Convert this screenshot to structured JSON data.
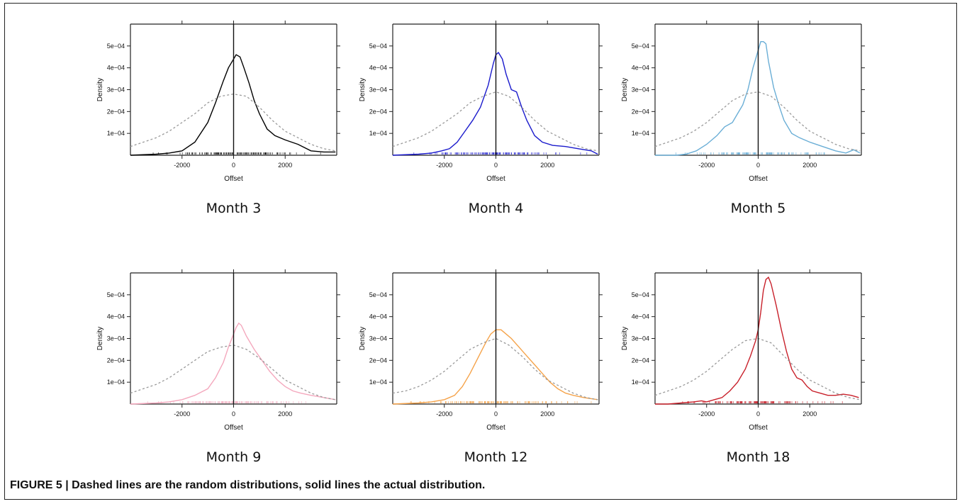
{
  "caption": "FIGURE 5 | Dashed lines are the random distributions, solid lines the actual distribution.",
  "chart_data": [
    {
      "type": "line",
      "title": "Month 3",
      "color": "#000000",
      "xlabel": "Offset",
      "ylabel": "Density",
      "xlim": [
        -4000,
        4000
      ],
      "ylim": [
        0,
        0.0006
      ],
      "xticks": [
        -2000,
        0,
        2000
      ],
      "yticks": [
        0.0001,
        0.0002,
        0.0003,
        0.0004,
        0.0005
      ],
      "xtick_labels": [
        "-2000",
        "0",
        "2000"
      ],
      "ytick_labels": [
        "1e−04",
        "2e−04",
        "3e−04",
        "4e−04",
        "5e−04"
      ],
      "series": [
        {
          "style": "solid",
          "x": [
            -4000,
            -3000,
            -2500,
            -2000,
            -1500,
            -1000,
            -700,
            -400,
            -200,
            0,
            100,
            250,
            400,
            600,
            800,
            1000,
            1300,
            1600,
            2000,
            2500,
            3000,
            3500,
            3950
          ],
          "y": [
            0.0,
            5e-06,
            1e-05,
            2e-05,
            6e-05,
            0.00015,
            0.00024,
            0.00034,
            0.0004,
            0.00044,
            0.00046,
            0.00045,
            0.0004,
            0.00033,
            0.00025,
            0.00019,
            0.00012,
            9e-05,
            7e-05,
            5e-05,
            2e-05,
            1.5e-05,
            1.5e-05
          ]
        },
        {
          "style": "dashed",
          "x": [
            -4000,
            -3500,
            -3000,
            -2500,
            -2000,
            -1500,
            -1000,
            -500,
            0,
            500,
            1000,
            1500,
            2000,
            2500,
            3000,
            3500,
            3950
          ],
          "y": [
            4e-05,
            6e-05,
            8e-05,
            0.00011,
            0.00015,
            0.00019,
            0.00024,
            0.00027,
            0.00028,
            0.00027,
            0.00022,
            0.00016,
            0.00011,
            8e-05,
            5e-05,
            3e-05,
            2e-05
          ]
        }
      ]
    },
    {
      "type": "line",
      "title": "Month 4",
      "color": "#1a1acc",
      "xlabel": "Offset",
      "ylabel": "Density",
      "xlim": [
        -4000,
        4000
      ],
      "ylim": [
        0,
        0.0006
      ],
      "xticks": [
        -2000,
        0,
        2000
      ],
      "yticks": [
        0.0001,
        0.0002,
        0.0003,
        0.0004,
        0.0005
      ],
      "xtick_labels": [
        "-2000",
        "0",
        "2000"
      ],
      "ytick_labels": [
        "1e−04",
        "2e−04",
        "3e−04",
        "4e−04",
        "5e−04"
      ],
      "series": [
        {
          "style": "solid",
          "x": [
            -4000,
            -3000,
            -2500,
            -2100,
            -1800,
            -1500,
            -1200,
            -900,
            -600,
            -300,
            -100,
            0,
            100,
            250,
            400,
            600,
            800,
            1000,
            1200,
            1500,
            1800,
            2200,
            2700,
            3200,
            3700,
            3950
          ],
          "y": [
            0.0,
            5e-06,
            1e-05,
            2e-05,
            3e-05,
            6e-05,
            0.00011,
            0.00016,
            0.00022,
            0.00032,
            0.00042,
            0.00046,
            0.00047,
            0.00044,
            0.00037,
            0.0003,
            0.00029,
            0.00022,
            0.00016,
            9e-05,
            6e-05,
            4.5e-05,
            4e-05,
            3e-05,
            2e-05,
            5e-06
          ]
        },
        {
          "style": "dashed",
          "x": [
            -4000,
            -3500,
            -3000,
            -2500,
            -2000,
            -1500,
            -1000,
            -500,
            0,
            500,
            1000,
            1500,
            2000,
            2500,
            3000,
            3500,
            3950
          ],
          "y": [
            4e-05,
            6e-05,
            8e-05,
            0.00011,
            0.00015,
            0.00019,
            0.00024,
            0.00027,
            0.00029,
            0.00027,
            0.00022,
            0.00016,
            0.00011,
            8e-05,
            5e-05,
            3e-05,
            2e-05
          ]
        }
      ]
    },
    {
      "type": "line",
      "title": "Month 5",
      "color": "#6aaed6",
      "xlabel": "Offset",
      "ylabel": "Density",
      "xlim": [
        -4000,
        4000
      ],
      "ylim": [
        0,
        0.0006
      ],
      "xticks": [
        -2000,
        0,
        2000
      ],
      "yticks": [
        0.0001,
        0.0002,
        0.0003,
        0.0004,
        0.0005
      ],
      "xtick_labels": [
        "-2000",
        "0",
        "2000"
      ],
      "ytick_labels": [
        "1e−04",
        "2e−04",
        "3e−04",
        "4e−04",
        "5e−04"
      ],
      "series": [
        {
          "style": "solid",
          "x": [
            -4000,
            -3200,
            -2800,
            -2400,
            -2000,
            -1600,
            -1300,
            -1000,
            -800,
            -600,
            -400,
            -200,
            0,
            100,
            200,
            300,
            400,
            600,
            800,
            1000,
            1300,
            1600,
            2000,
            2500,
            3000,
            3400,
            3700,
            3950
          ],
          "y": [
            0.0,
            0.0,
            5e-06,
            2e-05,
            5e-05,
            9e-05,
            0.00013,
            0.00015,
            0.00019,
            0.00023,
            0.0003,
            0.0004,
            0.00048,
            0.00052,
            0.00052,
            0.00051,
            0.00043,
            0.00031,
            0.00023,
            0.00016,
            0.0001,
            8e-05,
            6e-05,
            4e-05,
            2e-05,
            1e-05,
            2.5e-05,
            1e-05
          ]
        },
        {
          "style": "dashed",
          "x": [
            -4000,
            -3500,
            -3000,
            -2500,
            -2000,
            -1500,
            -1000,
            -500,
            0,
            500,
            1000,
            1500,
            2000,
            2500,
            3000,
            3500,
            3950
          ],
          "y": [
            4e-05,
            6e-05,
            8e-05,
            0.00011,
            0.00015,
            0.0002,
            0.00025,
            0.00028,
            0.00029,
            0.00027,
            0.00022,
            0.00016,
            0.00011,
            8e-05,
            5e-05,
            3e-05,
            2e-05
          ]
        }
      ]
    },
    {
      "type": "line",
      "title": "Month 9",
      "color": "#f4a8bd",
      "xlabel": "Offset",
      "ylabel": "Density",
      "xlim": [
        -4000,
        4000
      ],
      "ylim": [
        0,
        0.0006
      ],
      "xticks": [
        -2000,
        0,
        2000
      ],
      "yticks": [
        0.0001,
        0.0002,
        0.0003,
        0.0004,
        0.0005
      ],
      "xtick_labels": [
        "-2000",
        "0",
        "2000"
      ],
      "ytick_labels": [
        "1e−04",
        "2e−04",
        "3e−04",
        "4e−04",
        "5e−04"
      ],
      "series": [
        {
          "style": "solid",
          "x": [
            -4000,
            -3000,
            -2500,
            -2000,
            -1500,
            -1000,
            -700,
            -400,
            -200,
            0,
            100,
            200,
            300,
            500,
            800,
            1100,
            1400,
            1700,
            2000,
            2300,
            2600,
            3000,
            3500,
            3950
          ],
          "y": [
            0.0,
            5e-06,
            1e-05,
            2e-05,
            4e-05,
            7e-05,
            0.00012,
            0.00019,
            0.00026,
            0.00032,
            0.00035,
            0.00037,
            0.00036,
            0.00031,
            0.00025,
            0.0002,
            0.00015,
            0.00011,
            8e-05,
            6e-05,
            5e-05,
            4e-05,
            3e-05,
            2e-05
          ]
        },
        {
          "style": "dashed",
          "x": [
            -4000,
            -3500,
            -3000,
            -2500,
            -2000,
            -1500,
            -1000,
            -500,
            0,
            500,
            1000,
            1500,
            2000,
            2500,
            3000,
            3500,
            3950
          ],
          "y": [
            5e-05,
            7e-05,
            9e-05,
            0.00012,
            0.00016,
            0.0002,
            0.00024,
            0.00026,
            0.00027,
            0.00025,
            0.00021,
            0.00016,
            0.00011,
            8e-05,
            5e-05,
            3e-05,
            2e-05
          ]
        }
      ]
    },
    {
      "type": "line",
      "title": "Month 12",
      "color": "#f5a34a",
      "xlabel": "Offset",
      "ylabel": "Density",
      "xlim": [
        -4000,
        4000
      ],
      "ylim": [
        0,
        0.0006
      ],
      "xticks": [
        -2000,
        0,
        2000
      ],
      "yticks": [
        0.0001,
        0.0002,
        0.0003,
        0.0004,
        0.0005
      ],
      "xtick_labels": [
        "-2000",
        "0",
        "2000"
      ],
      "ytick_labels": [
        "1e−04",
        "2e−04",
        "3e−04",
        "4e−04",
        "5e−04"
      ],
      "series": [
        {
          "style": "solid",
          "x": [
            -4000,
            -3000,
            -2500,
            -2000,
            -1600,
            -1300,
            -1000,
            -700,
            -400,
            -200,
            0,
            100,
            200,
            400,
            600,
            900,
            1200,
            1500,
            1800,
            2100,
            2400,
            2700,
            3000,
            3400,
            3950
          ],
          "y": [
            0.0,
            5e-06,
            1e-05,
            2e-05,
            4e-05,
            8e-05,
            0.00014,
            0.00021,
            0.00028,
            0.00032,
            0.00034,
            0.00034,
            0.00034,
            0.00032,
            0.0003,
            0.00026,
            0.00022,
            0.00018,
            0.00014,
            0.0001,
            7e-05,
            5e-05,
            4e-05,
            3e-05,
            2e-05
          ]
        },
        {
          "style": "dashed",
          "x": [
            -4000,
            -3500,
            -3000,
            -2500,
            -2000,
            -1500,
            -1000,
            -500,
            0,
            500,
            1000,
            1500,
            2000,
            2500,
            3000,
            3500,
            3950
          ],
          "y": [
            5e-05,
            6e-05,
            8e-05,
            0.00011,
            0.00015,
            0.0002,
            0.00025,
            0.00028,
            0.0003,
            0.00027,
            0.00022,
            0.00016,
            0.00011,
            8e-05,
            5e-05,
            3e-05,
            2e-05
          ]
        }
      ]
    },
    {
      "type": "line",
      "title": "Month 18",
      "color": "#c8202a",
      "xlabel": "Offset",
      "ylabel": "Density",
      "xlim": [
        -4000,
        4000
      ],
      "ylim": [
        0,
        0.0006
      ],
      "xticks": [
        -2000,
        0,
        2000
      ],
      "yticks": [
        0.0001,
        0.0002,
        0.0003,
        0.0004,
        0.0005
      ],
      "xtick_labels": [
        "-2000",
        "0",
        "2000"
      ],
      "ytick_labels": [
        "1e−04",
        "2e−04",
        "3e−04",
        "4e−04",
        "5e−04"
      ],
      "series": [
        {
          "style": "solid",
          "x": [
            -4000,
            -3500,
            -3000,
            -2500,
            -2200,
            -2000,
            -1700,
            -1400,
            -1100,
            -800,
            -500,
            -300,
            -100,
            0,
            100,
            200,
            300,
            400,
            500,
            700,
            900,
            1100,
            1300,
            1500,
            1700,
            1900,
            2100,
            2400,
            2700,
            3000,
            3300,
            3600,
            3900
          ],
          "y": [
            0.0,
            0.0,
            5e-06,
            1e-05,
            1.5e-05,
            1e-05,
            2e-05,
            3e-05,
            6e-05,
            0.0001,
            0.00016,
            0.00022,
            0.00029,
            0.00034,
            0.00042,
            0.00052,
            0.00057,
            0.00058,
            0.00055,
            0.00045,
            0.00034,
            0.00024,
            0.00016,
            0.00012,
            0.00011,
            8e-05,
            6e-05,
            5e-05,
            4e-05,
            4e-05,
            4.5e-05,
            4e-05,
            3e-05
          ]
        },
        {
          "style": "dashed",
          "x": [
            -4000,
            -3500,
            -3000,
            -2500,
            -2000,
            -1500,
            -1000,
            -500,
            0,
            500,
            1000,
            1500,
            2000,
            2500,
            3000,
            3500,
            3950
          ],
          "y": [
            4e-05,
            6e-05,
            8e-05,
            0.00011,
            0.00015,
            0.0002,
            0.00025,
            0.00029,
            0.0003,
            0.00028,
            0.00022,
            0.00016,
            0.00011,
            8e-05,
            5e-05,
            3e-05,
            2e-05
          ]
        }
      ]
    }
  ]
}
